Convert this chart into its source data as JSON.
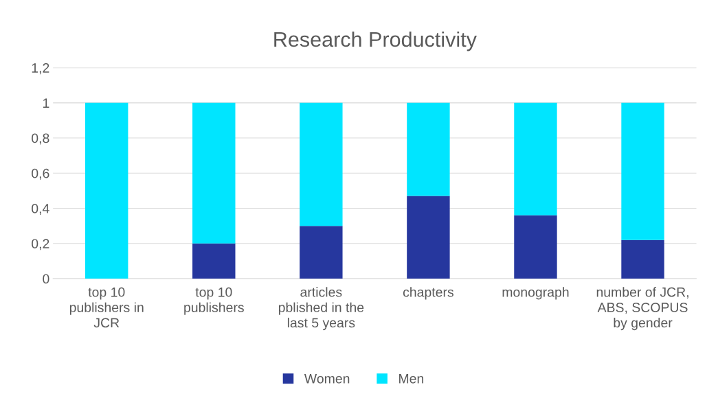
{
  "chart_data": {
    "type": "bar",
    "title": "Research Productivity",
    "stacked": true,
    "categories": [
      "top 10 publishers in JCR",
      "top 10 publishers",
      "articles pblished in the last 5 years",
      "chapters",
      "monograph",
      "number of JCR, ABS, SCOPUS by gender"
    ],
    "series": [
      {
        "name": "Women",
        "color": "#26379e",
        "values": [
          0,
          0.2,
          0.3,
          0.47,
          0.36,
          0.22
        ]
      },
      {
        "name": "Men",
        "color": "#00e5ff",
        "values": [
          1,
          0.8,
          0.7,
          0.53,
          0.64,
          0.78
        ]
      }
    ],
    "ylim": [
      0,
      1.2
    ],
    "yticks": [
      0,
      {
        "value": 0.2,
        "label": "0,2"
      },
      {
        "value": 0.4,
        "label": "0,4"
      },
      {
        "value": 0.6,
        "label": "0,6"
      },
      {
        "value": 0.8,
        "label": "0,8"
      },
      1,
      {
        "value": 1.2,
        "label": "1,2"
      }
    ],
    "grid": "y",
    "legend": "bottom"
  }
}
